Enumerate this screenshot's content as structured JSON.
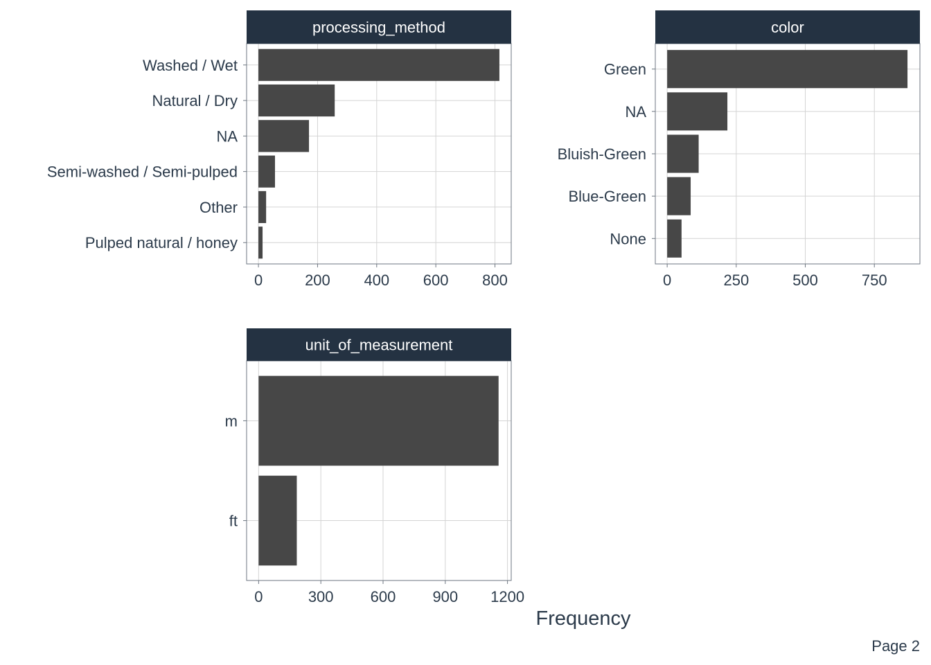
{
  "page": {
    "label": "Page 2"
  },
  "x_axis_title": "Frequency",
  "colors": {
    "strip_bg": "#243242",
    "strip_text": "#ffffff",
    "bar": "#474747",
    "grid": "#d4d4d4",
    "panel_border": "#6c7580",
    "text": "#2b3a4a"
  },
  "chart_data": [
    {
      "type": "bar",
      "orientation": "horizontal",
      "title": "processing_method",
      "categories": [
        "Washed / Wet",
        "Natural / Dry",
        "NA",
        "Semi-washed / Semi-pulped",
        "Other",
        "Pulped natural / honey"
      ],
      "values": [
        815,
        258,
        171,
        56,
        26,
        14
      ],
      "xlim": [
        -40,
        855
      ],
      "ticks": [
        0,
        200,
        400,
        600,
        800
      ],
      "tick_labels": [
        "0",
        "200",
        "400",
        "600",
        "800"
      ],
      "grid": true
    },
    {
      "type": "bar",
      "orientation": "horizontal",
      "title": "color",
      "categories": [
        "Green",
        "NA",
        "Bluish-Green",
        "Blue-Green",
        "None"
      ],
      "values": [
        870,
        218,
        114,
        85,
        52
      ],
      "xlim": [
        -43,
        915
      ],
      "ticks": [
        0,
        250,
        500,
        750
      ],
      "tick_labels": [
        "0",
        "250",
        "500",
        "750"
      ],
      "grid": true
    },
    {
      "type": "bar",
      "orientation": "horizontal",
      "title": "unit_of_measurement",
      "categories": [
        "m",
        "ft"
      ],
      "values": [
        1157,
        184
      ],
      "xlim": [
        -58,
        1218
      ],
      "ticks": [
        0,
        300,
        600,
        900,
        1200
      ],
      "tick_labels": [
        "0",
        "300",
        "600",
        "900",
        "1200"
      ],
      "grid": true
    }
  ]
}
